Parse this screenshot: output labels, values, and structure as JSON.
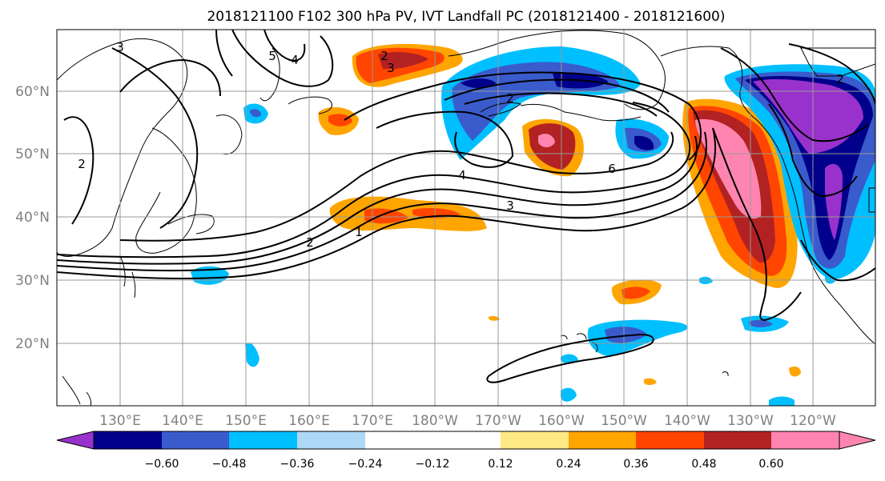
{
  "title": "2018121100 F102 300 hPa PV, IVT Landfall PC (2018121400 - 2018121600)",
  "lat_labels": [
    "60°N",
    "50°N",
    "40°N",
    "30°N",
    "20°N"
  ],
  "lon_labels": [
    "130°E",
    "140°E",
    "150°E",
    "160°E",
    "170°E",
    "180°W",
    "170°W",
    "160°W",
    "150°W",
    "140°W",
    "130°W",
    "120°W"
  ],
  "contour_labels": [
    "3",
    "5",
    "4",
    "2",
    "3",
    "2",
    "2",
    "4",
    "6",
    "3",
    "2",
    "1",
    "2"
  ],
  "colorbar": {
    "colors": [
      "#9932cc",
      "#00008b",
      "#3a5bcc",
      "#00bfff",
      "#add8f6",
      "#ffffff",
      "#ffe985",
      "#ffa500",
      "#ff4500",
      "#b22222",
      "#ff85b0"
    ],
    "ticks": [
      "−0.60",
      "−0.48",
      "−0.36",
      "−0.24",
      "−0.12",
      "0.12",
      "0.24",
      "0.36",
      "0.48",
      "0.60"
    ]
  }
}
